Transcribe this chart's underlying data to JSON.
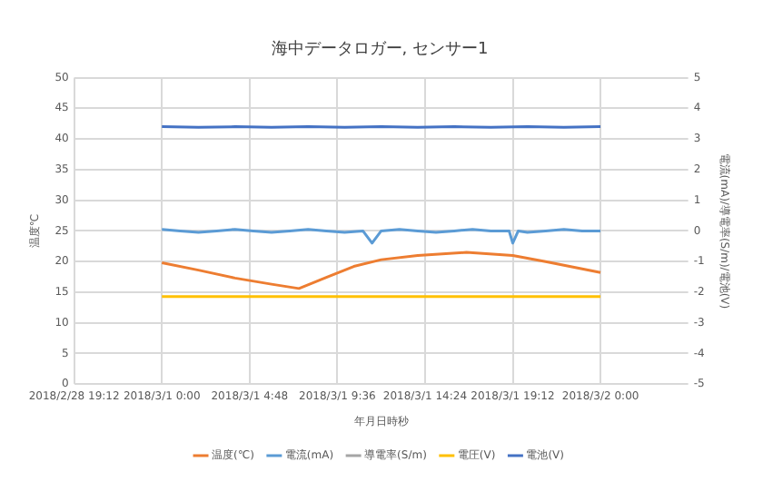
{
  "chart_data": {
    "type": "line",
    "title": "海中データロガー, センサー1",
    "xlabel": "年月日時秒",
    "ylabel": "温度℃",
    "y2label": "電流(mA)/導電率(S/m)/電池(V)",
    "xlim": [
      "2018-02-28T19:12",
      "2018-03-02T04:48"
    ],
    "xticks": [
      {
        "value": "2018-02-28T19:12",
        "label": "2018/2/28 19:12"
      },
      {
        "value": "2018-03-01T00:00",
        "label": "2018/3/1 0:00"
      },
      {
        "value": "2018-03-01T04:48",
        "label": "2018/3/1 4:48"
      },
      {
        "value": "2018-03-01T09:36",
        "label": "2018/3/1 9:36"
      },
      {
        "value": "2018-03-01T14:24",
        "label": "2018/3/1 14:24"
      },
      {
        "value": "2018-03-01T19:12",
        "label": "2018/3/1 19:12"
      },
      {
        "value": "2018-03-02T00:00",
        "label": "2018/3/2 0:00"
      }
    ],
    "ylim": [
      0,
      50
    ],
    "yticks": [
      0,
      5,
      10,
      15,
      20,
      25,
      30,
      35,
      40,
      45,
      50
    ],
    "y2lim": [
      -5,
      5
    ],
    "y2ticks": [
      -5,
      -4,
      -3,
      -2,
      -1,
      0,
      1,
      2,
      3,
      4,
      5
    ],
    "grid": true,
    "legend": "bottom",
    "marker": "none",
    "x": [
      "2018-03-01T00:00",
      "2018-03-01T02:00",
      "2018-03-01T04:00",
      "2018-03-01T06:00",
      "2018-03-01T07:30",
      "2018-03-01T09:00",
      "2018-03-01T10:30",
      "2018-03-01T12:00",
      "2018-03-01T14:00",
      "2018-03-01T16:40",
      "2018-03-01T19:12",
      "2018-03-01T21:00",
      "2018-03-02T00:00"
    ],
    "series": [
      {
        "name": "温度(℃)",
        "color": "#ed7d31",
        "values": [
          19.8,
          18.6,
          17.3,
          16.3,
          15.6,
          17.4,
          19.2,
          20.3,
          21.0,
          21.5,
          21.0,
          20.0,
          18.2
        ]
      },
      {
        "name": "電流(mA)",
        "color": "#5b9bd5",
        "axis": "y2",
        "x": [
          "2018-03-01T00:00",
          "2018-03-01T01:00",
          "2018-03-01T02:00",
          "2018-03-01T03:00",
          "2018-03-01T04:00",
          "2018-03-01T05:00",
          "2018-03-01T06:00",
          "2018-03-01T07:00",
          "2018-03-01T08:00",
          "2018-03-01T09:00",
          "2018-03-01T10:00",
          "2018-03-01T11:00",
          "2018-03-01T11:30",
          "2018-03-01T12:00",
          "2018-03-01T13:00",
          "2018-03-01T14:00",
          "2018-03-01T15:00",
          "2018-03-01T16:00",
          "2018-03-01T17:00",
          "2018-03-01T18:00",
          "2018-03-01T19:00",
          "2018-03-01T19:12",
          "2018-03-01T19:30",
          "2018-03-01T20:00",
          "2018-03-01T21:00",
          "2018-03-01T22:00",
          "2018-03-01T23:00",
          "2018-03-02T00:00"
        ],
        "values": [
          0.05,
          0,
          -0.05,
          0,
          0.05,
          0,
          -0.05,
          0,
          0.05,
          0,
          -0.05,
          0,
          -0.4,
          0,
          0.05,
          0,
          -0.05,
          0,
          0.05,
          0,
          0,
          -0.4,
          0,
          -0.05,
          0,
          0.05,
          0,
          0
        ]
      },
      {
        "name": "導電率(S/m)",
        "color": "#a5a5a5",
        "axis": "y2",
        "values": [
          null,
          null,
          null,
          null,
          null,
          null,
          null,
          null,
          null,
          null,
          null,
          null,
          null
        ]
      },
      {
        "name": "電圧(V)",
        "color": "#ffc000",
        "values": [
          14.3,
          14.3,
          14.3,
          14.3,
          14.3,
          14.3,
          14.3,
          14.3,
          14.3,
          14.3,
          14.3,
          14.3,
          14.3
        ]
      },
      {
        "name": "電池(V)",
        "color": "#4472c4",
        "axis": "y2",
        "x": [
          "2018-03-01T00:00",
          "2018-03-01T02:00",
          "2018-03-01T04:00",
          "2018-03-01T06:00",
          "2018-03-01T08:00",
          "2018-03-01T10:00",
          "2018-03-01T12:00",
          "2018-03-01T14:00",
          "2018-03-01T16:00",
          "2018-03-01T18:00",
          "2018-03-01T20:00",
          "2018-03-01T22:00",
          "2018-03-02T00:00"
        ],
        "values": [
          3.4,
          3.38,
          3.4,
          3.38,
          3.4,
          3.38,
          3.4,
          3.38,
          3.4,
          3.38,
          3.4,
          3.38,
          3.4
        ]
      }
    ]
  }
}
